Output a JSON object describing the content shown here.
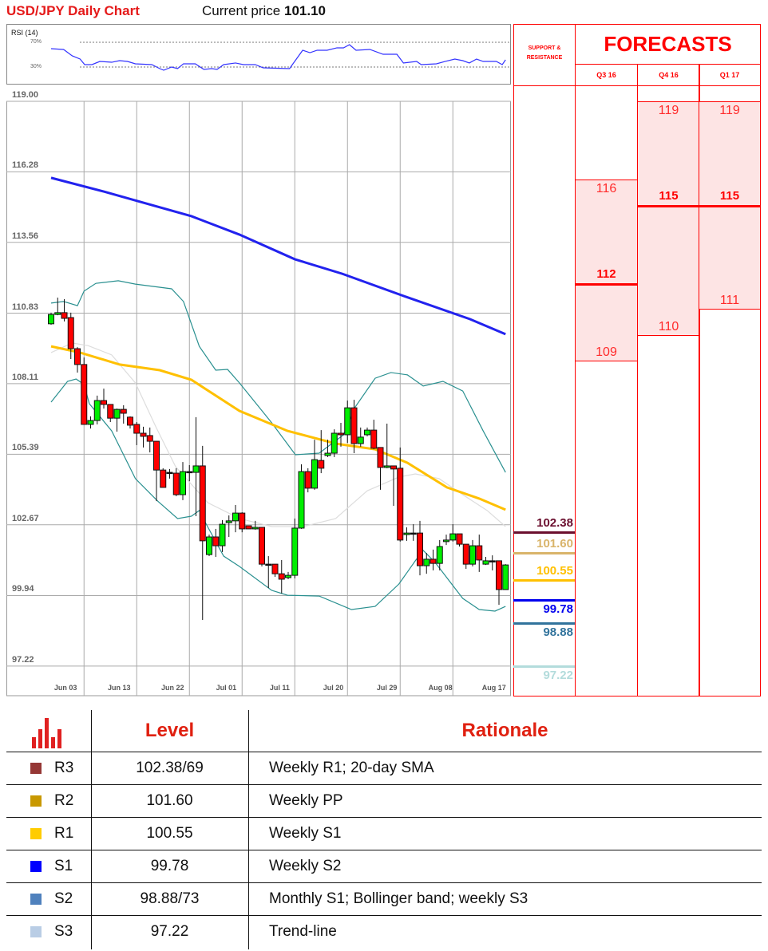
{
  "header": {
    "title": "USD/JPY Daily Chart",
    "current_price_label": "Current price",
    "current_price": "101.10"
  },
  "rsi": {
    "label": "RSI (14)",
    "levels": [
      "70%",
      "30%"
    ],
    "color": "#3333ff",
    "points": [
      [
        1,
        59.7
      ],
      [
        2.9,
        58.4
      ],
      [
        4.2,
        48.1
      ],
      [
        5.4,
        42.9
      ],
      [
        6.1,
        33.9
      ],
      [
        7.2,
        33.9
      ],
      [
        8.4,
        39.0
      ],
      [
        10.2,
        37.7
      ],
      [
        11.4,
        40.3
      ],
      [
        12.6,
        39.0
      ],
      [
        13.8,
        35.2
      ],
      [
        16.3,
        33.9
      ],
      [
        17.5,
        27.4
      ],
      [
        18.1,
        24.8
      ],
      [
        19.3,
        30.0
      ],
      [
        20.2,
        27.4
      ],
      [
        21.1,
        35.2
      ],
      [
        22.9,
        35.2
      ],
      [
        24.2,
        26.1
      ],
      [
        25.4,
        27.4
      ],
      [
        26.2,
        26.1
      ],
      [
        27.2,
        33.9
      ],
      [
        29,
        36.5
      ],
      [
        30.2,
        33.9
      ],
      [
        32,
        33.9
      ],
      [
        33.2,
        28.7
      ],
      [
        37.2,
        27.4
      ],
      [
        39.2,
        57.1
      ],
      [
        40.3,
        53.2
      ],
      [
        41.4,
        57.1
      ],
      [
        42.9,
        57.1
      ],
      [
        44.4,
        61.0
      ],
      [
        45.4,
        61.0
      ],
      [
        46.3,
        66.1
      ],
      [
        47.3,
        57.1
      ],
      [
        49.4,
        58.4
      ],
      [
        51.4,
        50.6
      ],
      [
        53.5,
        50.6
      ],
      [
        54.5,
        36.5
      ],
      [
        56.5,
        39.0
      ],
      [
        57.2,
        33.9
      ],
      [
        59.5,
        35.2
      ],
      [
        60.8,
        39.0
      ],
      [
        62.3,
        42.9
      ],
      [
        63.5,
        40.3
      ],
      [
        64.5,
        36.5
      ],
      [
        65.6,
        42.9
      ],
      [
        66.6,
        39.0
      ],
      [
        68.6,
        39.0
      ],
      [
        69.5,
        33.9
      ],
      [
        70,
        41.6
      ]
    ]
  },
  "chart_data": {
    "type": "candlestick",
    "title": "USD/JPY Daily Chart",
    "ylim": [
      97.22,
      119.0
    ],
    "y_ticks": [
      "119.00",
      "116.28",
      "113.56",
      "110.83",
      "108.11",
      "105.39",
      "102.67",
      "99.94",
      "97.22"
    ],
    "x_ticks": [
      "Jun 03",
      "Jun 13",
      "Jun 22",
      "Jul 01",
      "Jul 11",
      "Jul 20",
      "Jul 29",
      "Aug 08",
      "Aug 17"
    ],
    "grid": true,
    "colors": {
      "up": "#00ee00",
      "down": "#ff0000",
      "sma_long": "#2222ee",
      "sma_mid": "#ffc000",
      "bollinger": "#2a9090",
      "bollinger_mid": "#dddddd"
    },
    "ohlc": [
      [
        110.42,
        110.85,
        110.38,
        110.78
      ],
      [
        110.78,
        111.43,
        110.75,
        110.85
      ],
      [
        110.85,
        111.37,
        110.51,
        110.63
      ],
      [
        110.66,
        110.85,
        109.06,
        109.46
      ],
      [
        109.46,
        109.52,
        108.54,
        108.85
      ],
      [
        108.85,
        109.12,
        106.54,
        106.54
      ],
      [
        106.54,
        106.85,
        106.38,
        106.69
      ],
      [
        106.69,
        107.65,
        106.54,
        107.46
      ],
      [
        107.46,
        107.92,
        107.15,
        107.31
      ],
      [
        107.31,
        107.31,
        106.63,
        106.78
      ],
      [
        106.78,
        107.15,
        106.26,
        107.12
      ],
      [
        107.12,
        107.28,
        106.57,
        106.97
      ],
      [
        106.82,
        106.85,
        106.38,
        106.51
      ],
      [
        106.54,
        106.63,
        105.74,
        106.2
      ],
      [
        106.2,
        106.45,
        105.65,
        106.08
      ],
      [
        106.11,
        106.42,
        105.46,
        105.89
      ],
      [
        105.89,
        105.89,
        103.58,
        104.78
      ],
      [
        104.78,
        104.85,
        104.11,
        104.11
      ],
      [
        104.69,
        104.82,
        104.45,
        104.66
      ],
      [
        104.66,
        104.85,
        103.77,
        103.83
      ],
      [
        103.83,
        105.09,
        103.62,
        104.72
      ],
      [
        104.72,
        104.97,
        104.35,
        104.69
      ],
      [
        104.69,
        106.82,
        103.0,
        104.94
      ],
      [
        104.94,
        105.71,
        99.0,
        102.05
      ],
      [
        101.52,
        102.29,
        101.46,
        102.2
      ],
      [
        102.2,
        102.51,
        101.43,
        101.86
      ],
      [
        101.86,
        102.85,
        101.62,
        102.69
      ],
      [
        102.75,
        103.03,
        102.2,
        102.82
      ],
      [
        102.82,
        103.43,
        102.38,
        103.12
      ],
      [
        103.12,
        103.15,
        102.38,
        102.51
      ],
      [
        102.63,
        102.63,
        102.51,
        102.51
      ],
      [
        102.51,
        102.82,
        102.48,
        102.57
      ],
      [
        102.57,
        102.57,
        101.06,
        101.15
      ],
      [
        101.15,
        101.46,
        100.23,
        101.15
      ],
      [
        101.15,
        101.15,
        100.66,
        100.78
      ],
      [
        100.78,
        101.31,
        100.02,
        100.57
      ],
      [
        100.63,
        100.85,
        100.57,
        100.72
      ],
      [
        100.72,
        102.91,
        100.6,
        102.54
      ],
      [
        102.54,
        105.0,
        102.51,
        104.72
      ],
      [
        104.72,
        104.85,
        103.92,
        104.08
      ],
      [
        104.08,
        105.95,
        104.02,
        105.18
      ],
      [
        105.15,
        106.32,
        104.66,
        104.85
      ],
      [
        105.34,
        105.95,
        105.28,
        105.43
      ],
      [
        105.43,
        106.35,
        105.28,
        106.2
      ],
      [
        106.2,
        106.6,
        105.68,
        106.14
      ],
      [
        106.14,
        107.46,
        105.83,
        107.18
      ],
      [
        107.18,
        107.49,
        105.43,
        105.8
      ],
      [
        105.8,
        106.42,
        105.68,
        106.05
      ],
      [
        106.14,
        106.42,
        106.08,
        106.32
      ],
      [
        106.32,
        106.72,
        105.58,
        105.62
      ],
      [
        105.65,
        105.65,
        104.02,
        104.88
      ],
      [
        104.88,
        106.57,
        104.85,
        104.94
      ],
      [
        104.94,
        104.94,
        103.4,
        104.82
      ],
      [
        104.85,
        105.65,
        102.02,
        102.08
      ],
      [
        102.29,
        102.57,
        102.05,
        102.35
      ],
      [
        102.35,
        102.69,
        102.05,
        102.32
      ],
      [
        102.35,
        102.82,
        100.72,
        101.09
      ],
      [
        101.09,
        101.58,
        100.78,
        101.34
      ],
      [
        101.34,
        101.71,
        100.91,
        101.18
      ],
      [
        101.18,
        102.08,
        100.91,
        101.83
      ],
      [
        102.02,
        102.29,
        101.89,
        102.08
      ],
      [
        102.08,
        102.69,
        102.02,
        102.32
      ],
      [
        102.32,
        102.32,
        101.83,
        101.92
      ],
      [
        101.92,
        101.92,
        100.97,
        101.15
      ],
      [
        101.15,
        102.08,
        101.06,
        101.86
      ],
      [
        101.86,
        102.29,
        100.85,
        101.31
      ],
      [
        101.15,
        101.43,
        101.12,
        101.28
      ],
      [
        101.28,
        101.49,
        100.91,
        101.28
      ],
      [
        101.28,
        101.28,
        99.58,
        100.17
      ],
      [
        100.17,
        101.15,
        100.17,
        101.12
      ]
    ],
    "overlays": {
      "sma_long": [
        [
          1,
          116.05
        ],
        [
          9,
          115.52
        ],
        [
          22.3,
          114.57
        ],
        [
          29.6,
          113.86
        ],
        [
          38,
          112.91
        ],
        [
          45.2,
          112.35
        ],
        [
          54.9,
          111.46
        ],
        [
          64.6,
          110.6
        ],
        [
          70,
          110.02
        ]
      ],
      "sma_mid": [
        [
          1,
          109.55
        ],
        [
          5.4,
          109.31
        ],
        [
          11.4,
          108.85
        ],
        [
          17.5,
          108.63
        ],
        [
          22.3,
          108.26
        ],
        [
          29.6,
          107.06
        ],
        [
          36.9,
          106.29
        ],
        [
          44.2,
          105.8
        ],
        [
          50.2,
          105.58
        ],
        [
          55.1,
          105.06
        ],
        [
          61.1,
          104.11
        ],
        [
          66,
          103.68
        ],
        [
          70,
          103.25
        ]
      ],
      "bollinger_upper": [
        [
          1,
          111.22
        ],
        [
          2.9,
          111.28
        ],
        [
          5,
          111.12
        ],
        [
          6,
          111.68
        ],
        [
          7.8,
          111.98
        ],
        [
          11.2,
          112.08
        ],
        [
          13.8,
          111.95
        ],
        [
          19.3,
          111.77
        ],
        [
          21.1,
          111.28
        ],
        [
          23.5,
          109.55
        ],
        [
          26,
          108.63
        ],
        [
          27.8,
          108.66
        ],
        [
          29.6,
          108.14
        ],
        [
          34.5,
          106.6
        ],
        [
          38.1,
          105.37
        ],
        [
          41.7,
          105.43
        ],
        [
          45.4,
          106.14
        ],
        [
          47.2,
          107.22
        ],
        [
          50.2,
          108.32
        ],
        [
          52.6,
          108.54
        ],
        [
          55.1,
          108.45
        ],
        [
          57.5,
          108.02
        ],
        [
          60.5,
          108.2
        ],
        [
          63.5,
          107.83
        ],
        [
          66.6,
          106.29
        ],
        [
          70,
          104.69
        ]
      ],
      "bollinger_lower": [
        [
          1,
          107.4
        ],
        [
          3.5,
          108.2
        ],
        [
          4.8,
          108.29
        ],
        [
          6,
          108.08
        ],
        [
          6.8,
          107.34
        ],
        [
          10.2,
          106.29
        ],
        [
          13.8,
          104.45
        ],
        [
          17.2,
          103.58
        ],
        [
          20.2,
          102.91
        ],
        [
          22.3,
          103.0
        ],
        [
          23.5,
          103.22
        ],
        [
          24.5,
          102.72
        ],
        [
          27.2,
          101.46
        ],
        [
          29.6,
          101.06
        ],
        [
          34.5,
          100.14
        ],
        [
          36.9,
          99.95
        ],
        [
          41.7,
          99.92
        ],
        [
          46.6,
          99.4
        ],
        [
          50.2,
          99.52
        ],
        [
          53.8,
          100.38
        ],
        [
          56.3,
          101.28
        ],
        [
          57.5,
          101.68
        ],
        [
          59.3,
          101.22
        ],
        [
          63.5,
          99.83
        ],
        [
          66,
          99.4
        ],
        [
          68.4,
          99.34
        ],
        [
          70,
          99.52
        ]
      ],
      "bollinger_mid": [
        [
          1,
          109.31
        ],
        [
          4.2,
          109.68
        ],
        [
          6.6,
          109.58
        ],
        [
          10.2,
          109.22
        ],
        [
          13.8,
          108.14
        ],
        [
          16.9,
          106.45
        ],
        [
          19.9,
          104.91
        ],
        [
          24.8,
          103.52
        ],
        [
          29.6,
          102.91
        ],
        [
          34.5,
          102.6
        ],
        [
          39.3,
          102.6
        ],
        [
          44.2,
          102.91
        ],
        [
          49,
          103.98
        ],
        [
          53.8,
          104.51
        ],
        [
          56.3,
          104.63
        ],
        [
          59.9,
          104.45
        ],
        [
          63.5,
          103.83
        ],
        [
          67.2,
          103.22
        ],
        [
          70,
          102.6
        ]
      ]
    }
  },
  "support_resistance": {
    "header": "SUPPORT & RESISTANCE",
    "levels": [
      {
        "value": "102.38",
        "price": 102.38,
        "color": "#6b0f2e",
        "label_pos": "above"
      },
      {
        "value": "101.60",
        "price": 101.6,
        "color": "#d9b46a",
        "label_pos": "above"
      },
      {
        "value": "100.55",
        "price": 100.55,
        "color": "#ffc000",
        "label_pos": "above"
      },
      {
        "value": "99.78",
        "price": 99.78,
        "color": "#0000ee",
        "label_pos": "below"
      },
      {
        "value": "98.88",
        "price": 98.88,
        "color": "#31739c",
        "label_pos": "below"
      },
      {
        "value": "97.22",
        "price": 97.22,
        "color": "#b3dcdc",
        "label_pos": "below"
      }
    ]
  },
  "forecasts": {
    "title": "FORECASTS",
    "accent": "#ff0000",
    "quarters": [
      {
        "label": "Q3 16",
        "high": "116",
        "mid": "112",
        "low": "109"
      },
      {
        "label": "Q4 16",
        "high": "119",
        "mid": "115",
        "low": "110"
      },
      {
        "label": "Q1 17",
        "high": "119",
        "mid": "115",
        "low": "111"
      }
    ]
  },
  "levels_table": {
    "icon": "bar-chart-icon",
    "headers": {
      "level": "Level",
      "rationale": "Rationale"
    },
    "rows": [
      {
        "name": "R3",
        "color": "#953735",
        "level": "102.38/69",
        "rationale": "Weekly R1; 20-day SMA"
      },
      {
        "name": "R2",
        "color": "#c89800",
        "level": "101.60",
        "rationale": "Weekly PP"
      },
      {
        "name": "R1",
        "color": "#ffcc00",
        "level": "100.55",
        "rationale": "Weekly S1"
      },
      {
        "name": "S1",
        "color": "#0000ff",
        "level": "99.78",
        "rationale": "Weekly S2"
      },
      {
        "name": "S2",
        "color": "#4f81bd",
        "level": "98.88/73",
        "rationale": "Monthly S1; Bollinger band; weekly S3"
      },
      {
        "name": "S3",
        "color": "#b9cde5",
        "level": "97.22",
        "rationale": "Trend-line"
      }
    ]
  }
}
